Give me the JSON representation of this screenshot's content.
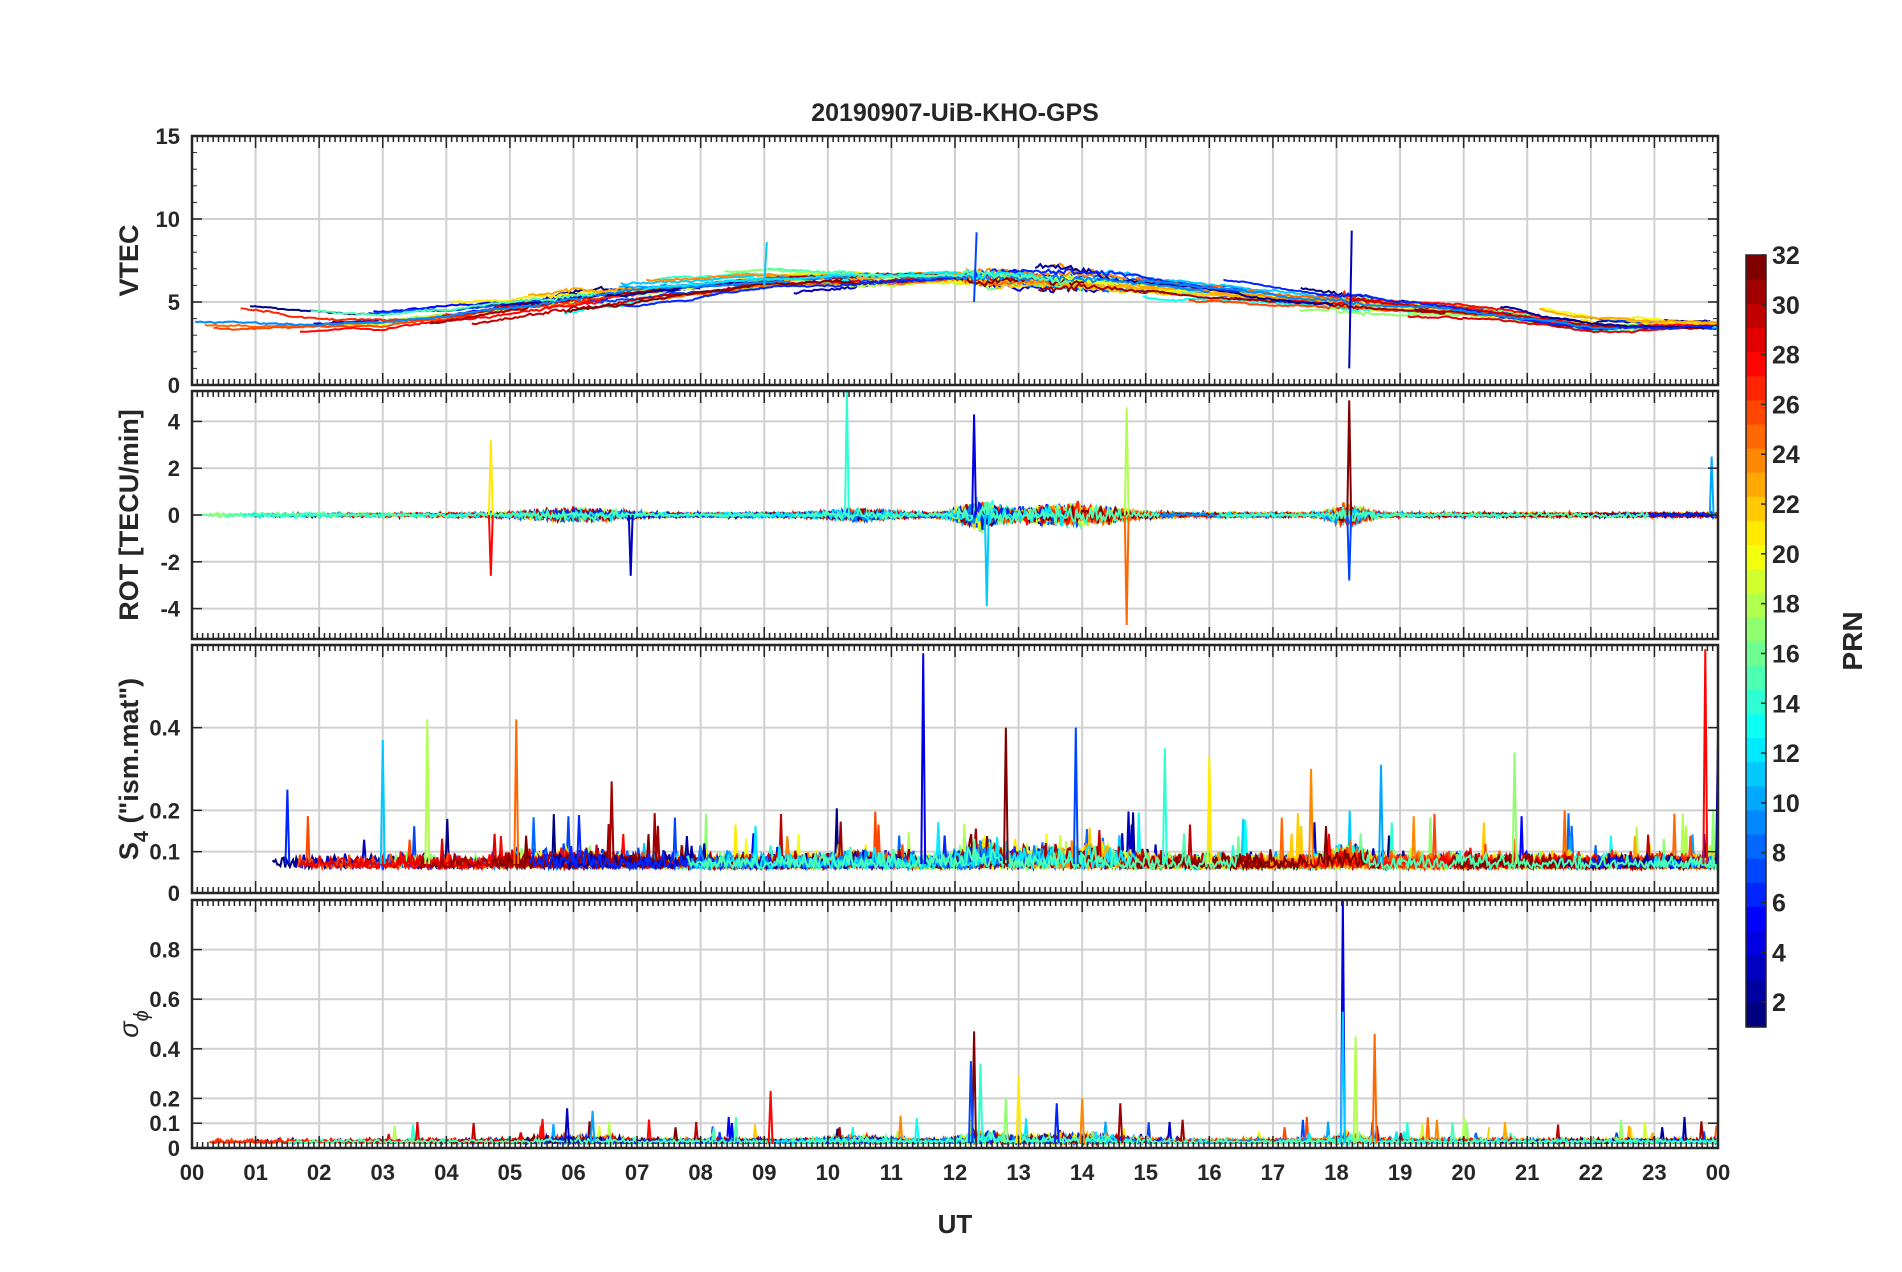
{
  "chart_data": {
    "type": "line",
    "title": "20190907-UiB-KHO-GPS",
    "xlabel": "UT",
    "x_ticks": [
      "00",
      "01",
      "02",
      "03",
      "04",
      "05",
      "06",
      "07",
      "08",
      "09",
      "10",
      "11",
      "12",
      "13",
      "14",
      "15",
      "16",
      "17",
      "18",
      "19",
      "20",
      "21",
      "22",
      "23",
      "00"
    ],
    "xlim": [
      0,
      24
    ],
    "grid": true,
    "panels": [
      {
        "id": "vtec",
        "ylabel": "VTEC",
        "ylim": [
          0,
          15
        ],
        "y_ticks": [
          {
            "v": 0,
            "t": "0"
          },
          {
            "v": 5,
            "t": "5"
          },
          {
            "v": 10,
            "t": "10"
          },
          {
            "v": 15,
            "t": "15"
          }
        ],
        "minor_y": true,
        "series_note": "one line per GPS PRN, diurnal TEC 2-9 TECU, peak near 12-14 UT",
        "envelope": {
          "x": [
            0,
            3,
            6,
            9,
            12,
            13,
            15,
            18,
            20,
            22,
            24
          ],
          "y": [
            4,
            3.8,
            5.2,
            6.3,
            6.6,
            6.5,
            6.0,
            5.0,
            4.5,
            3.5,
            3.5
          ]
        },
        "events": [
          {
            "x": 18.2,
            "from": 1.0,
            "to": 9.3
          },
          {
            "x": 12.3,
            "from": 5.0,
            "to": 9.2
          },
          {
            "x": 9.0,
            "from": 6.0,
            "to": 8.6
          }
        ]
      },
      {
        "id": "rot",
        "ylabel": "ROT [TECU/min]",
        "ylim": [
          -5.3,
          5.3
        ],
        "y_ticks": [
          {
            "v": -4,
            "t": "-4"
          },
          {
            "v": -2,
            "t": "-2"
          },
          {
            "v": 0,
            "t": "0"
          },
          {
            "v": 2,
            "t": "2"
          },
          {
            "v": 4,
            "t": "4"
          }
        ],
        "minor_y": false,
        "series_note": "rate of TEC change per PRN, fluctuating about 0 with bursts near 12-15 UT and 18 UT",
        "spikes": [
          {
            "x": 12.3,
            "v": 4.3
          },
          {
            "x": 12.5,
            "v": -3.9
          },
          {
            "x": 14.7,
            "v": 4.6
          },
          {
            "x": 14.7,
            "v": -4.7
          },
          {
            "x": 18.2,
            "v": 4.9
          },
          {
            "x": 18.2,
            "v": -2.8
          },
          {
            "x": 10.3,
            "v": 5.3
          },
          {
            "x": 4.7,
            "v": 3.2
          },
          {
            "x": 4.7,
            "v": -2.6
          },
          {
            "x": 6.9,
            "v": -2.6
          },
          {
            "x": 23.9,
            "v": 2.5
          }
        ]
      },
      {
        "id": "s4",
        "ylabel_main": "S",
        "ylabel_sub": "4",
        "ylabel_rest": " (\"ism.mat\")",
        "ylim": [
          0,
          0.6
        ],
        "y_ticks": [
          {
            "v": 0,
            "t": "0"
          },
          {
            "v": 0.1,
            "t": "0.1"
          },
          {
            "v": 0.2,
            "t": "0.2"
          },
          {
            "v": 0.4,
            "t": "0.4"
          }
        ],
        "minor_y": false,
        "series_note": "amplitude scintillation index per PRN, background 0.05-0.1",
        "spikes": [
          {
            "x": 11.5,
            "v": 0.58
          },
          {
            "x": 3.0,
            "v": 0.37
          },
          {
            "x": 3.7,
            "v": 0.42
          },
          {
            "x": 5.1,
            "v": 0.42
          },
          {
            "x": 12.8,
            "v": 0.4
          },
          {
            "x": 13.9,
            "v": 0.4
          },
          {
            "x": 15.3,
            "v": 0.35
          },
          {
            "x": 16.0,
            "v": 0.33
          },
          {
            "x": 23.8,
            "v": 0.59
          },
          {
            "x": 24.0,
            "v": 0.38
          },
          {
            "x": 18.7,
            "v": 0.31
          },
          {
            "x": 20.8,
            "v": 0.34
          },
          {
            "x": 17.6,
            "v": 0.3
          },
          {
            "x": 6.6,
            "v": 0.27
          },
          {
            "x": 1.5,
            "v": 0.25
          }
        ]
      },
      {
        "id": "sigphi",
        "ylabel_main": "σ",
        "ylabel_sub": "ϕ",
        "ylim": [
          0,
          1
        ],
        "y_ticks": [
          {
            "v": 0,
            "t": "0"
          },
          {
            "v": 0.1,
            "t": "0.1"
          },
          {
            "v": 0.2,
            "t": "0.2"
          },
          {
            "v": 0.4,
            "t": "0.4"
          },
          {
            "v": 0.6,
            "t": "0.6"
          },
          {
            "v": 0.8,
            "t": "0.8"
          }
        ],
        "minor_y": false,
        "series_note": "phase scintillation index per PRN, background near 0.02",
        "spikes": [
          {
            "x": 18.1,
            "v": 1.0
          },
          {
            "x": 18.1,
            "v": 0.55
          },
          {
            "x": 18.3,
            "v": 0.45
          },
          {
            "x": 18.6,
            "v": 0.46
          },
          {
            "x": 12.3,
            "v": 0.47
          },
          {
            "x": 12.25,
            "v": 0.35
          },
          {
            "x": 12.4,
            "v": 0.34
          },
          {
            "x": 13.0,
            "v": 0.29
          },
          {
            "x": 9.1,
            "v": 0.23
          },
          {
            "x": 5.9,
            "v": 0.16
          },
          {
            "x": 6.3,
            "v": 0.15
          },
          {
            "x": 12.8,
            "v": 0.2
          },
          {
            "x": 14.0,
            "v": 0.2
          },
          {
            "x": 14.6,
            "v": 0.18
          },
          {
            "x": 13.6,
            "v": 0.18
          },
          {
            "x": 11.4,
            "v": 0.12
          }
        ]
      }
    ],
    "colorbar": {
      "label": "PRN",
      "range": [
        1,
        32
      ],
      "ticks": [
        "2",
        "4",
        "6",
        "8",
        "10",
        "12",
        "14",
        "16",
        "18",
        "20",
        "22",
        "24",
        "26",
        "28",
        "30",
        "32"
      ],
      "colormap": "jet"
    }
  }
}
